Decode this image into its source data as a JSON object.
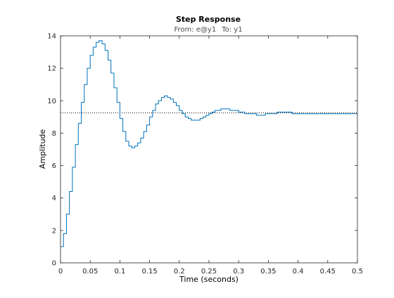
{
  "chart_data": {
    "type": "line",
    "title": "Step Response",
    "subtitle_from_label": "From: e@y1",
    "subtitle_to_label": "To: y1",
    "xlabel": "Time (seconds)",
    "ylabel": "Amplitude",
    "xlim": [
      0,
      0.5
    ],
    "ylim": [
      0,
      14
    ],
    "xticks": [
      0,
      0.05,
      0.1,
      0.15,
      0.2,
      0.25,
      0.3,
      0.35,
      0.4,
      0.45,
      0.5
    ],
    "xtick_labels": [
      "0",
      "0.05",
      "0.1",
      "0.15",
      "0.2",
      "0.25",
      "0.3",
      "0.35",
      "0.4",
      "0.45",
      "0.5"
    ],
    "yticks": [
      0,
      2,
      4,
      6,
      8,
      10,
      12,
      14
    ],
    "ytick_labels": [
      "0",
      "2",
      "4",
      "6",
      "8",
      "10",
      "12",
      "14"
    ],
    "grid": false,
    "step_style": "zero-order-hold stairs",
    "sample_time": 0.005,
    "steady_state": 9.25,
    "series": [
      {
        "color": "#0072bd",
        "x": [
          0,
          0.005,
          0.01,
          0.015,
          0.02,
          0.025,
          0.03,
          0.035,
          0.04,
          0.045,
          0.05,
          0.055,
          0.06,
          0.065,
          0.07,
          0.075,
          0.08,
          0.085,
          0.09,
          0.095,
          0.1,
          0.105,
          0.11,
          0.115,
          0.12,
          0.125,
          0.13,
          0.135,
          0.14,
          0.145,
          0.15,
          0.155,
          0.16,
          0.165,
          0.17,
          0.175,
          0.18,
          0.185,
          0.19,
          0.195,
          0.2,
          0.205,
          0.21,
          0.215,
          0.22,
          0.225,
          0.23,
          0.235,
          0.24,
          0.245,
          0.25,
          0.255,
          0.26,
          0.265,
          0.27,
          0.275,
          0.28,
          0.285,
          0.29,
          0.295,
          0.3,
          0.305,
          0.31,
          0.315,
          0.32,
          0.325,
          0.33,
          0.335,
          0.34,
          0.345,
          0.35,
          0.355,
          0.36,
          0.365,
          0.37,
          0.375,
          0.38,
          0.385,
          0.39,
          0.395,
          0.4,
          0.405,
          0.41,
          0.415,
          0.42,
          0.425,
          0.43,
          0.435,
          0.44,
          0.445,
          0.45,
          0.455,
          0.46,
          0.465,
          0.47,
          0.475,
          0.48,
          0.485,
          0.49,
          0.495,
          0.5
        ],
        "y": [
          1.0,
          1.8,
          3.0,
          4.4,
          5.9,
          7.3,
          8.6,
          9.9,
          11.0,
          12.0,
          12.8,
          13.3,
          13.6,
          13.7,
          13.5,
          13.1,
          12.5,
          11.7,
          10.8,
          9.9,
          8.9,
          8.1,
          7.5,
          7.2,
          7.1,
          7.2,
          7.4,
          7.7,
          8.1,
          8.5,
          9.0,
          9.4,
          9.8,
          10.0,
          10.2,
          10.3,
          10.2,
          10.1,
          9.9,
          9.7,
          9.4,
          9.2,
          9.0,
          8.9,
          8.8,
          8.8,
          8.8,
          8.9,
          9.0,
          9.1,
          9.2,
          9.3,
          9.4,
          9.4,
          9.5,
          9.5,
          9.5,
          9.4,
          9.4,
          9.4,
          9.3,
          9.3,
          9.2,
          9.2,
          9.2,
          9.2,
          9.1,
          9.1,
          9.1,
          9.2,
          9.2,
          9.2,
          9.2,
          9.3,
          9.3,
          9.3,
          9.3,
          9.3,
          9.2,
          9.2,
          9.2,
          9.2,
          9.2,
          9.2,
          9.2,
          9.2,
          9.2,
          9.2,
          9.2,
          9.2,
          9.2,
          9.2,
          9.2,
          9.2,
          9.2,
          9.2,
          9.2,
          9.2,
          9.2,
          9.2,
          9.2
        ]
      }
    ]
  }
}
